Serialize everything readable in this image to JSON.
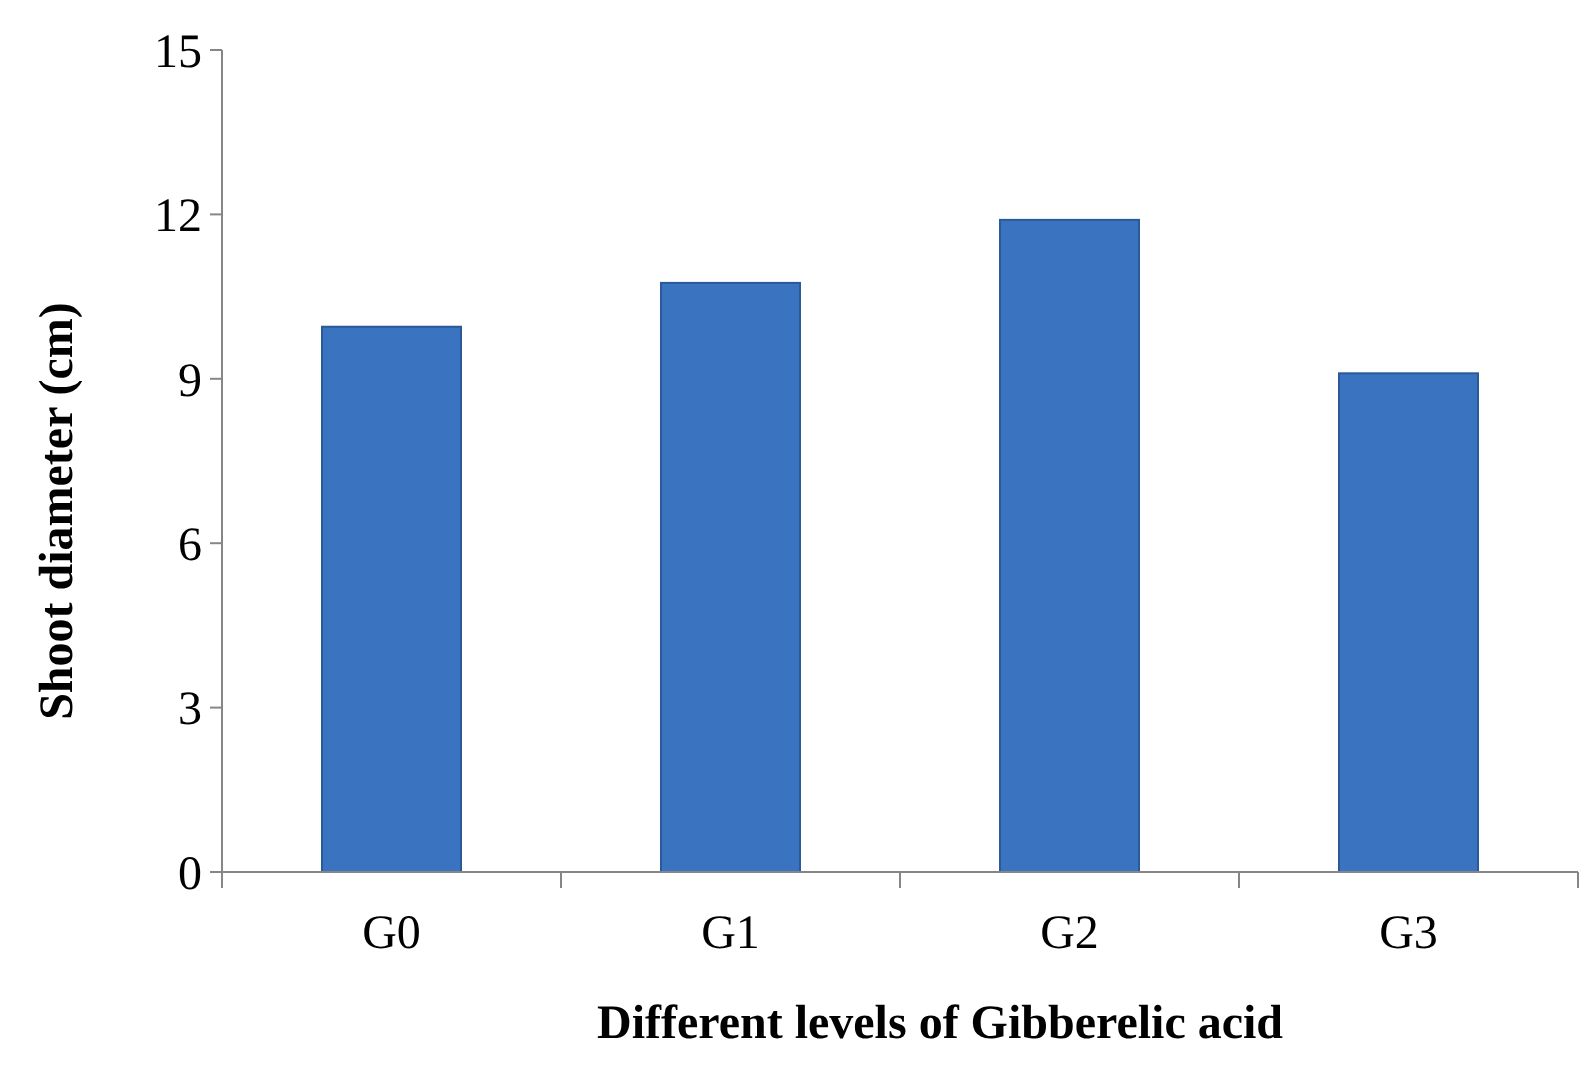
{
  "chart_data": {
    "type": "bar",
    "xlabel": "Different levels of Gibberelic acid",
    "ylabel": "Shoot diameter (cm)",
    "categories": [
      "G0",
      "G1",
      "G2",
      "G3"
    ],
    "values": [
      9.95,
      10.75,
      11.9,
      9.1
    ],
    "color": "#3a74c0",
    "ylim": [
      0,
      15
    ],
    "yticks": [
      0,
      3,
      6,
      9,
      12,
      15
    ],
    "grid": false
  }
}
